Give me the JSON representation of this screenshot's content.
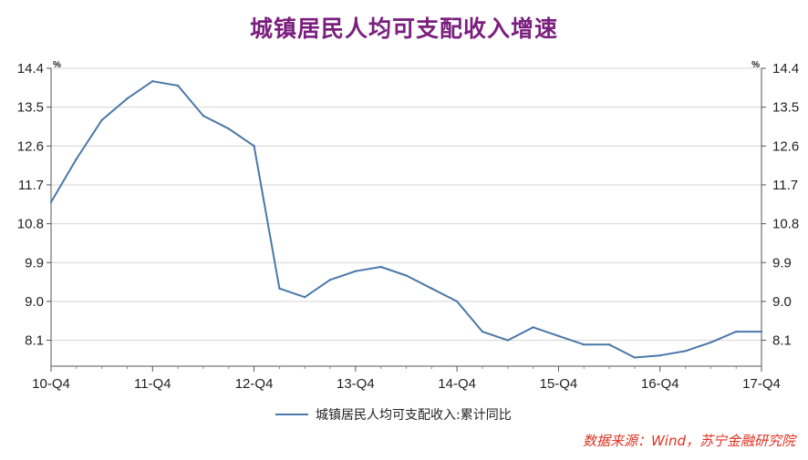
{
  "chart_data": {
    "type": "line",
    "title": "城镇居民人均可支配收入增速",
    "y_unit": "%",
    "ylim": [
      7.5,
      14.4
    ],
    "yticks": [
      14.4,
      13.5,
      12.6,
      11.7,
      10.8,
      9.9,
      9.0,
      8.1
    ],
    "ytick_labels": [
      "14.4",
      "13.5",
      "12.6",
      "11.7",
      "10.8",
      "9.9",
      "9.0",
      "8.1"
    ],
    "xticks": [
      "10-Q4",
      "11-Q4",
      "12-Q4",
      "13-Q4",
      "14-Q4",
      "15-Q4",
      "16-Q4",
      "17-Q4"
    ],
    "grid": "horizontal",
    "legend": "bottom-center",
    "series": [
      {
        "name": "城镇居民人均可支配收入:累计同比",
        "color": "#4a78a8",
        "x": [
          "10-Q4",
          "11-Q1",
          "11-Q2",
          "11-Q3",
          "11-Q4",
          "12-Q1",
          "12-Q2",
          "12-Q3",
          "12-Q4",
          "13-Q1",
          "13-Q2",
          "13-Q3",
          "13-Q4",
          "14-Q1",
          "14-Q2",
          "14-Q3",
          "14-Q4",
          "15-Q1",
          "15-Q2",
          "15-Q3",
          "15-Q4",
          "16-Q1",
          "16-Q2",
          "16-Q3",
          "16-Q4",
          "17-Q1",
          "17-Q2",
          "17-Q3",
          "17-Q4"
        ],
        "values": [
          11.3,
          12.3,
          13.2,
          13.7,
          14.1,
          14.0,
          13.3,
          13.0,
          12.6,
          9.3,
          9.1,
          9.5,
          9.7,
          9.8,
          9.6,
          9.3,
          9.0,
          8.3,
          8.1,
          8.4,
          8.2,
          8.0,
          8.0,
          7.7,
          7.75,
          7.85,
          8.05,
          8.3,
          8.3
        ]
      }
    ]
  },
  "source_note": "数据来源：Wind，苏宁金融研究院"
}
